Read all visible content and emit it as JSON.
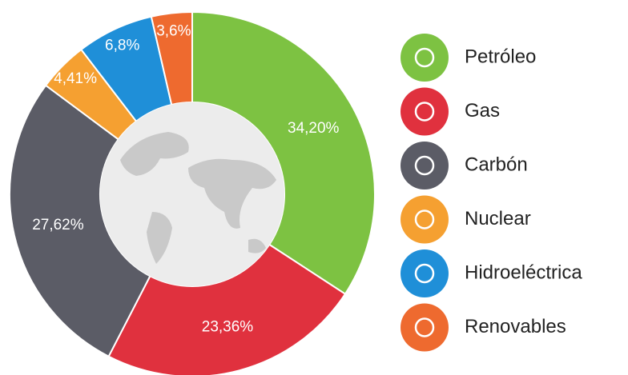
{
  "chart_data": {
    "type": "pie",
    "categories": [
      "Petróleo",
      "Gas",
      "Carbón",
      "Nuclear",
      "Hidroeléctrica",
      "Renovables"
    ],
    "values": [
      34.2,
      23.36,
      27.62,
      4.41,
      6.8,
      3.6
    ],
    "value_labels": [
      "34,20%",
      "23,36%",
      "27,62%",
      "4,41%",
      "6,8%",
      "3,6%"
    ],
    "colors": [
      "#7dc242",
      "#e0313e",
      "#5b5c66",
      "#f5a031",
      "#1f8fd8",
      "#ee6a2f"
    ],
    "legend": "right"
  }
}
